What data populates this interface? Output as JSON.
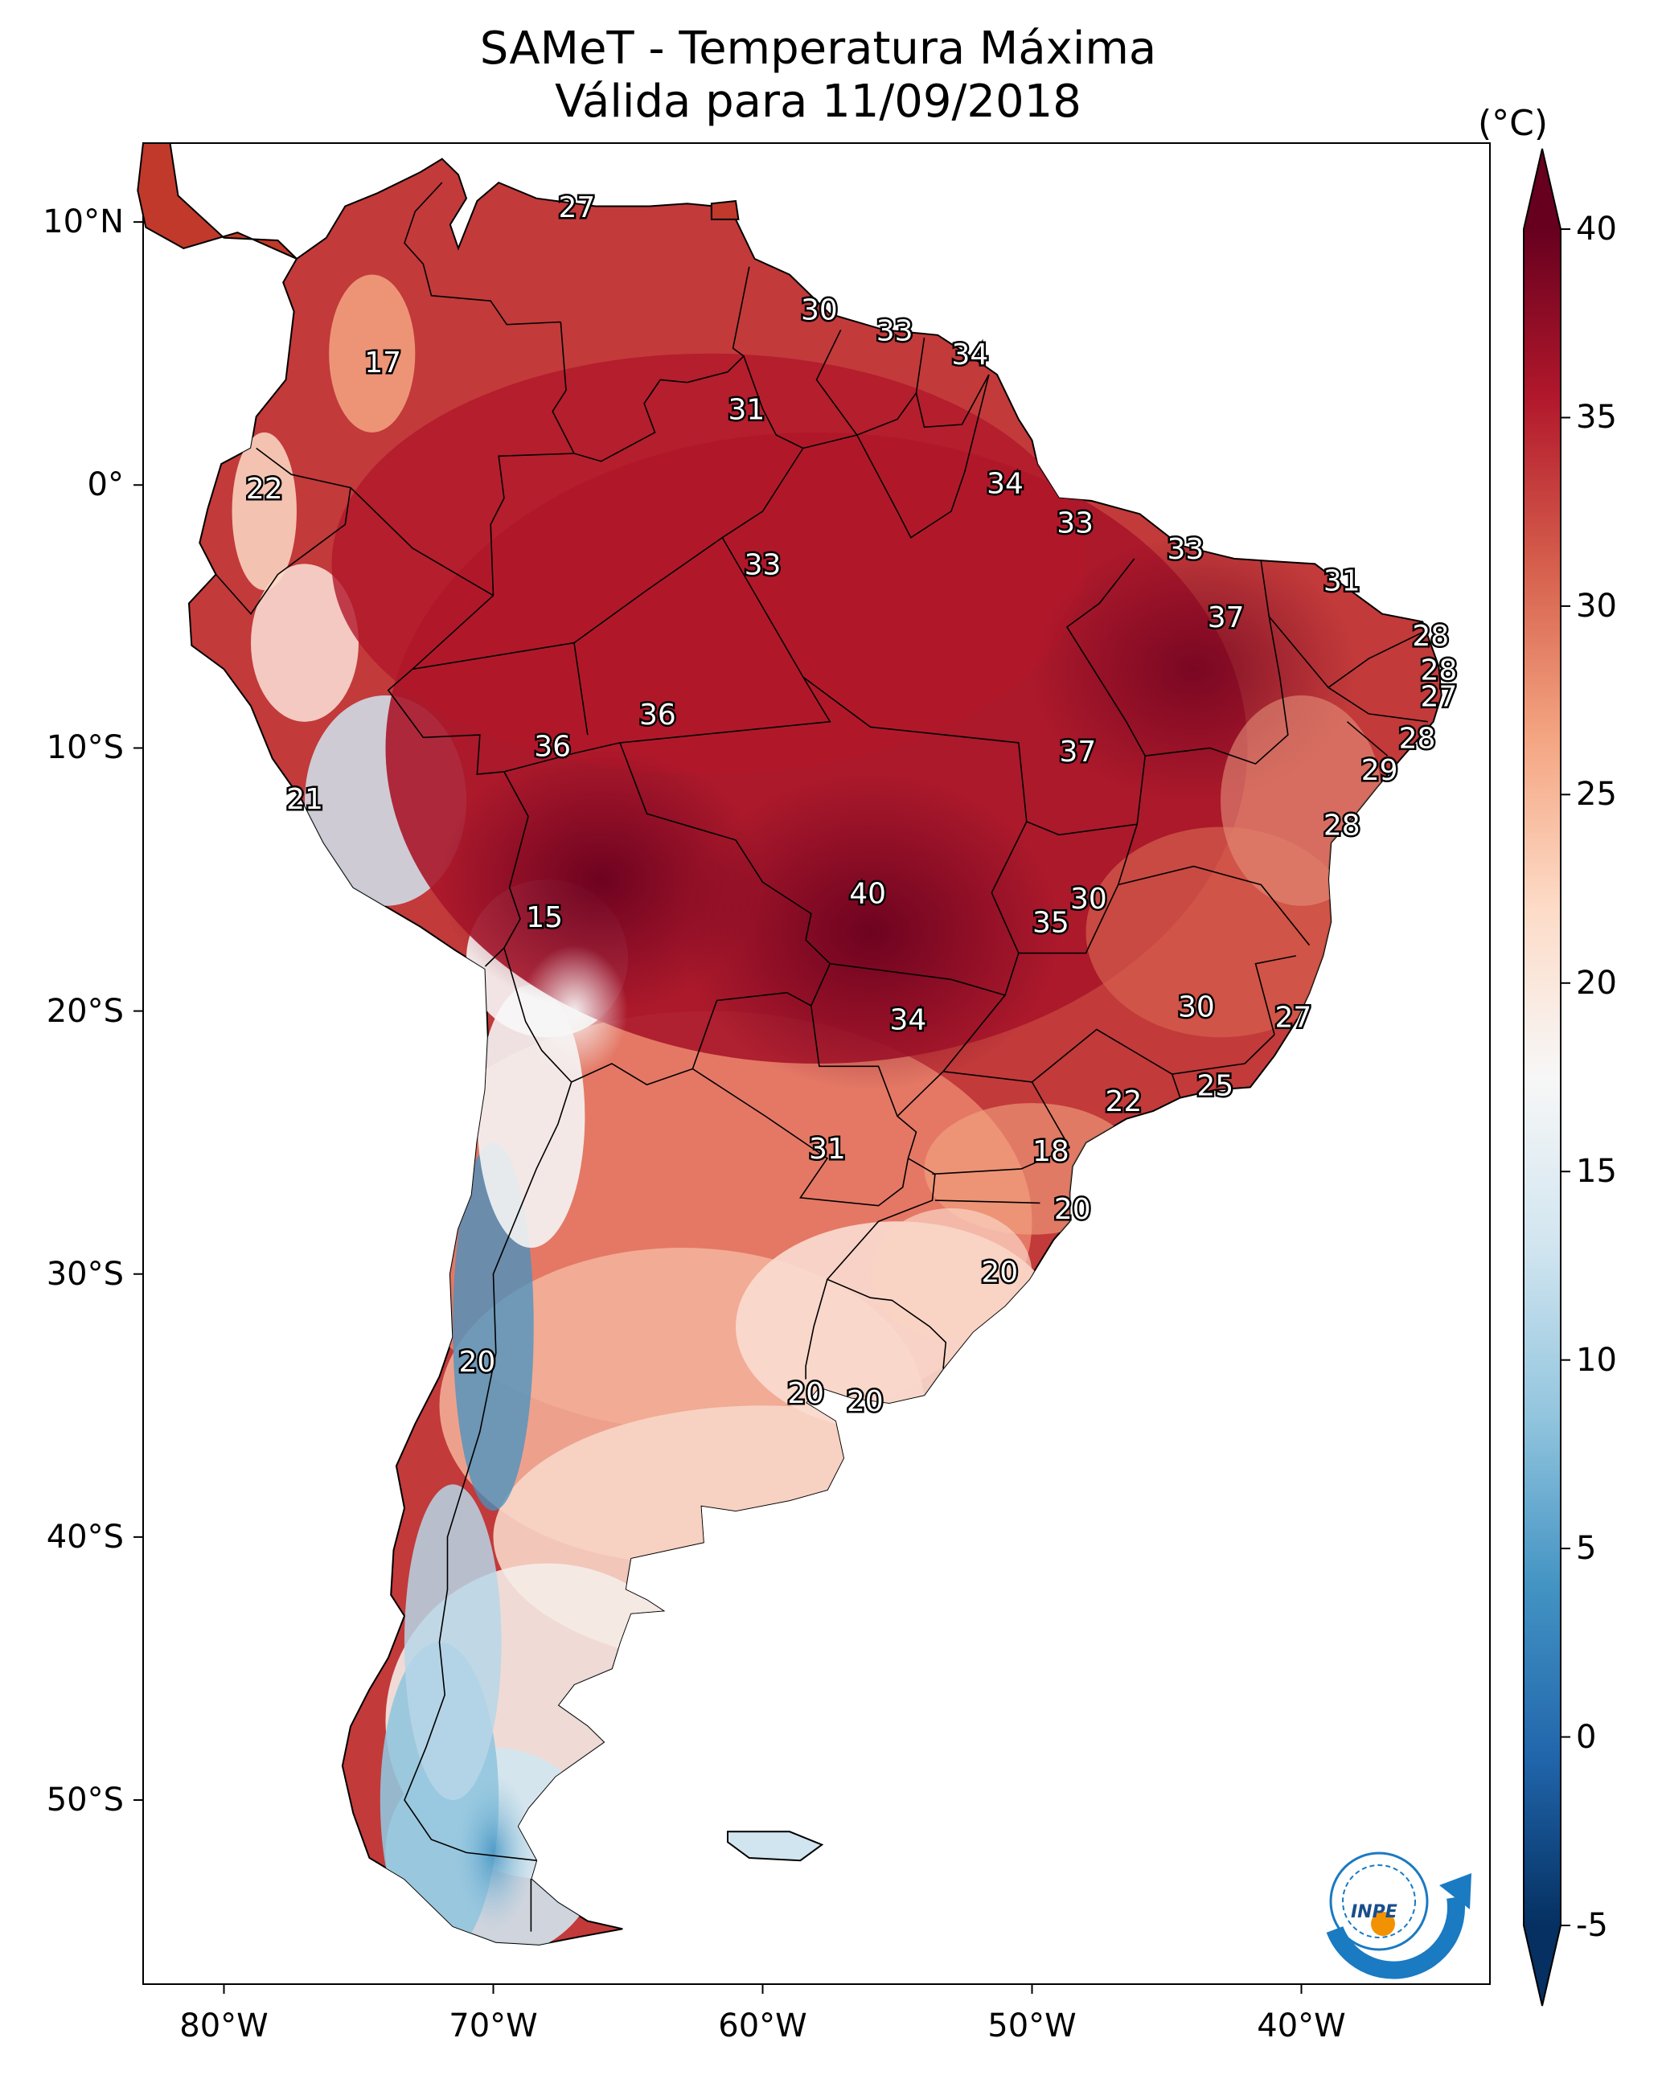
{
  "title": {
    "line1": "SAMeT - Temperatura Máxima",
    "line2": "Válida para 11/09/2018"
  },
  "latitude_ticks": [
    "10°N",
    "0°",
    "10°S",
    "20°S",
    "30°S",
    "40°S",
    "50°S"
  ],
  "longitude_ticks": [
    "80°W",
    "70°W",
    "60°W",
    "50°W",
    "40°W"
  ],
  "colorbar": {
    "unit": "(°C)",
    "ticks": [
      "40",
      "35",
      "30",
      "25",
      "20",
      "15",
      "10",
      "5",
      "0",
      "-5"
    ],
    "range": [
      -5,
      40
    ],
    "colormap": "RdBu_r",
    "extend": "both",
    "colors": [
      "#67001f",
      "#b2182b",
      "#d6604d",
      "#f4a582",
      "#fddbc7",
      "#f7f7f7",
      "#d1e5f0",
      "#92c5de",
      "#4393c3",
      "#2166ac",
      "#053061"
    ]
  },
  "logo_text": "INPE",
  "chart_data": {
    "type": "map",
    "projection": "PlateCarree",
    "extent": {
      "lon": [
        -83,
        -33
      ],
      "lat": [
        -57,
        13
      ]
    },
    "grid": false,
    "temperature_labels": [
      {
        "lon": -66.9,
        "lat": 10.5,
        "value": "27"
      },
      {
        "lon": -74.1,
        "lat": 4.6,
        "value": "17"
      },
      {
        "lon": -57.9,
        "lat": 6.6,
        "value": "30"
      },
      {
        "lon": -55.1,
        "lat": 5.8,
        "value": "33"
      },
      {
        "lon": -52.3,
        "lat": 4.9,
        "value": "34"
      },
      {
        "lon": -60.6,
        "lat": 2.8,
        "value": "31"
      },
      {
        "lon": -78.5,
        "lat": -0.2,
        "value": "22"
      },
      {
        "lon": -51.0,
        "lat": 0.0,
        "value": "34"
      },
      {
        "lon": -48.4,
        "lat": -1.5,
        "value": "33"
      },
      {
        "lon": -44.3,
        "lat": -2.5,
        "value": "33"
      },
      {
        "lon": -60.0,
        "lat": -3.1,
        "value": "33"
      },
      {
        "lon": -38.5,
        "lat": -3.7,
        "value": "31"
      },
      {
        "lon": -42.8,
        "lat": -5.1,
        "value": "37"
      },
      {
        "lon": -35.2,
        "lat": -5.8,
        "value": "28"
      },
      {
        "lon": -34.9,
        "lat": -7.1,
        "value": "28"
      },
      {
        "lon": -34.9,
        "lat": -8.1,
        "value": "27"
      },
      {
        "lon": -63.9,
        "lat": -8.8,
        "value": "36"
      },
      {
        "lon": -67.8,
        "lat": -10.0,
        "value": "36"
      },
      {
        "lon": -48.3,
        "lat": -10.2,
        "value": "37"
      },
      {
        "lon": -35.7,
        "lat": -9.7,
        "value": "28"
      },
      {
        "lon": -37.1,
        "lat": -10.9,
        "value": "29"
      },
      {
        "lon": -77.0,
        "lat": -12.0,
        "value": "21"
      },
      {
        "lon": -38.5,
        "lat": -13.0,
        "value": "28"
      },
      {
        "lon": -56.1,
        "lat": -15.6,
        "value": "40"
      },
      {
        "lon": -47.9,
        "lat": -15.8,
        "value": "30"
      },
      {
        "lon": -49.3,
        "lat": -16.7,
        "value": "35"
      },
      {
        "lon": -68.1,
        "lat": -16.5,
        "value": "15"
      },
      {
        "lon": -43.9,
        "lat": -19.9,
        "value": "30"
      },
      {
        "lon": -40.3,
        "lat": -20.3,
        "value": "27"
      },
      {
        "lon": -54.6,
        "lat": -20.4,
        "value": "34"
      },
      {
        "lon": -43.2,
        "lat": -22.9,
        "value": "25"
      },
      {
        "lon": -46.6,
        "lat": -23.5,
        "value": "22"
      },
      {
        "lon": -57.6,
        "lat": -25.3,
        "value": "31"
      },
      {
        "lon": -49.3,
        "lat": -25.4,
        "value": "18"
      },
      {
        "lon": -48.5,
        "lat": -27.6,
        "value": "20"
      },
      {
        "lon": -51.2,
        "lat": -30.0,
        "value": "20"
      },
      {
        "lon": -70.6,
        "lat": -33.4,
        "value": "20"
      },
      {
        "lon": -58.4,
        "lat": -34.6,
        "value": "20"
      },
      {
        "lon": -56.2,
        "lat": -34.9,
        "value": "20"
      }
    ]
  }
}
